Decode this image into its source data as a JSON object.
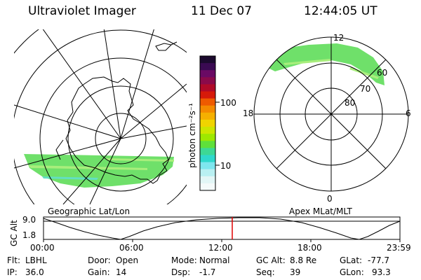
{
  "header": {
    "instrument": "Ultraviolet Imager",
    "date": "11 Dec 07",
    "time": "12:44:05 UT"
  },
  "left_panel": {
    "caption": "Geographic Lat/Lon"
  },
  "right_panel": {
    "caption": "Apex MLat/MLT",
    "mlt_labels": {
      "top": "12",
      "left": "18",
      "right": "6",
      "bottom": "0"
    },
    "mlat_labels": [
      "60",
      "70",
      "80"
    ]
  },
  "colorbar": {
    "unit_label": "photon cm⁻²s⁻¹",
    "ticks": [
      "100",
      "10"
    ],
    "colors_top_to_bottom": [
      "#1b0a2e",
      "#3a0a52",
      "#6a0a64",
      "#8a0a4a",
      "#b00a28",
      "#d61a0a",
      "#ee5a00",
      "#f48a00",
      "#f5b000",
      "#f0d400",
      "#cde600",
      "#9ee800",
      "#5fe03a",
      "#3dd895",
      "#2fd8cc",
      "#7ee6ee",
      "#b9f0f2",
      "#e2f6f6",
      "#f4fafa"
    ],
    "log_scale": true
  },
  "altitude_timeline": {
    "ylabel": "GC Alt",
    "ytick_top": "9.0",
    "ytick_bottom": "1.8",
    "xticks": [
      "00:00",
      "06:00",
      "12:00",
      "18:00",
      "23:59"
    ],
    "current_time_marker": "12:44",
    "marker_color": "#e00000"
  },
  "status": {
    "rows": [
      [
        {
          "label": "Flt:",
          "value": "LBHL"
        },
        {
          "label": "Door:",
          "value": "Open"
        },
        {
          "label": "Mode:",
          "value": "Normal"
        },
        {
          "label": "GC Alt:",
          "value": "8.8 Re"
        },
        {
          "label": "GLat:",
          "value": "-77.7"
        }
      ],
      [
        {
          "label": "IP:",
          "value": "36.0"
        },
        {
          "label": "Gain:",
          "value": "14"
        },
        {
          "label": "Dsp:",
          "value": "-1.7"
        },
        {
          "label": "Seq:",
          "value": "39"
        },
        {
          "label": "GLon:",
          "value": "93.3"
        }
      ]
    ]
  },
  "colors": {
    "aurora": "#6fe06a",
    "aurora_light": "#a8ee7c",
    "aurora_cyan": "#63dfc2",
    "marker": "#e00000"
  }
}
